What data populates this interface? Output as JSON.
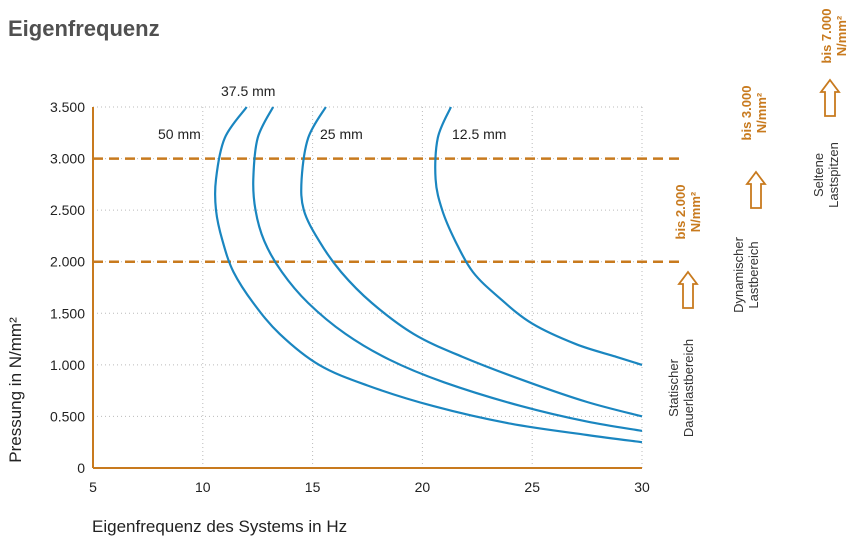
{
  "title": "Eigenfrequenz",
  "chart_data": {
    "type": "line",
    "title": "Eigenfrequenz",
    "xlabel": "Eigenfrequenz des Systems in Hz",
    "ylabel": "Pressung in N/mm²",
    "xlim": [
      5,
      30
    ],
    "ylim": [
      0,
      3500
    ],
    "x_ticks": [
      "5",
      "10",
      "15",
      "20",
      "25",
      "30"
    ],
    "y_ticks": [
      "0",
      "0.500",
      "1.000",
      "1.500",
      "2.000",
      "2.500",
      "3.000",
      "3.500"
    ],
    "x_tick_values": [
      5,
      10,
      15,
      20,
      25,
      30
    ],
    "y_tick_values": [
      0,
      500,
      1000,
      1500,
      2000,
      2500,
      3000,
      3500
    ],
    "grid": "dotted",
    "colors": {
      "curve": "#1a86c0",
      "limit": "#c87a1e",
      "axis": "#c87a1e",
      "title": "#505050"
    },
    "series": [
      {
        "name": "50 mm",
        "points": [
          [
            12.0,
            3500
          ],
          [
            11.0,
            3200
          ],
          [
            10.6,
            2800
          ],
          [
            10.6,
            2500
          ],
          [
            10.9,
            2200
          ],
          [
            11.4,
            1900
          ],
          [
            12.3,
            1600
          ],
          [
            13.5,
            1300
          ],
          [
            15.3,
            1000
          ],
          [
            17.5,
            800
          ],
          [
            20.5,
            600
          ],
          [
            24.0,
            430
          ],
          [
            27.5,
            320
          ],
          [
            30.0,
            250
          ]
        ]
      },
      {
        "name": "37.5 mm",
        "points": [
          [
            13.2,
            3500
          ],
          [
            12.5,
            3200
          ],
          [
            12.3,
            2800
          ],
          [
            12.4,
            2500
          ],
          [
            12.8,
            2200
          ],
          [
            13.6,
            1900
          ],
          [
            14.8,
            1600
          ],
          [
            16.5,
            1300
          ],
          [
            18.5,
            1050
          ],
          [
            21.0,
            830
          ],
          [
            24.5,
            600
          ],
          [
            27.5,
            450
          ],
          [
            30.0,
            360
          ]
        ]
      },
      {
        "name": "25 mm",
        "points": [
          [
            15.6,
            3500
          ],
          [
            14.8,
            3200
          ],
          [
            14.5,
            2800
          ],
          [
            14.6,
            2500
          ],
          [
            15.3,
            2200
          ],
          [
            16.3,
            1900
          ],
          [
            17.7,
            1600
          ],
          [
            19.6,
            1300
          ],
          [
            21.8,
            1080
          ],
          [
            24.6,
            850
          ],
          [
            27.5,
            640
          ],
          [
            30.0,
            500
          ]
        ]
      },
      {
        "name": "12.5 mm",
        "points": [
          [
            21.3,
            3500
          ],
          [
            20.7,
            3200
          ],
          [
            20.6,
            2800
          ],
          [
            20.9,
            2500
          ],
          [
            21.5,
            2200
          ],
          [
            22.3,
            1900
          ],
          [
            23.5,
            1650
          ],
          [
            25.0,
            1400
          ],
          [
            27.0,
            1200
          ],
          [
            28.8,
            1080
          ],
          [
            30.0,
            1000
          ]
        ]
      }
    ],
    "curve_labels": [
      "50 mm",
      "37.5 mm",
      "25 mm",
      "12.5 mm"
    ],
    "limit_lines": [
      {
        "value": 2000,
        "label": "bis 2.000 N/mm²",
        "label_line1": "bis 2.000",
        "label_line2": "N/mm²",
        "range_line1": "Statischer",
        "range_line2": "Dauerlastbereich"
      },
      {
        "value": 3000,
        "label": "bis 3.000 N/mm²",
        "label_line1": "bis 3.000",
        "label_line2": "N/mm²",
        "range_line1": "Dynamischer",
        "range_line2": "Lastbereich"
      },
      {
        "value": 7000,
        "label": "bis 7.000 N/mm²",
        "label_line1": "bis 7.000",
        "label_line2": "N/mm²",
        "range_line1": "Seltene",
        "range_line2": "Lastspitzen"
      }
    ]
  }
}
